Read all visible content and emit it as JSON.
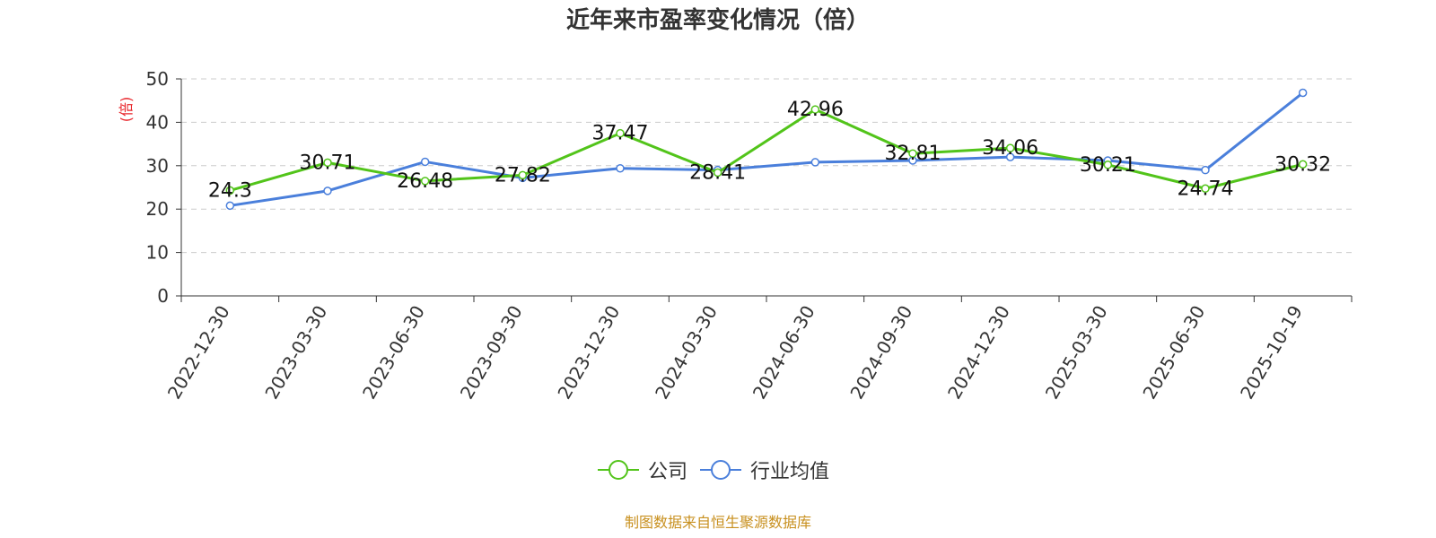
{
  "chart_data": {
    "type": "line",
    "title": "近年来市盈率变化情况（倍）",
    "ylabel": "(倍)",
    "xlabel": "",
    "ylim": [
      0,
      50
    ],
    "yticks": [
      0,
      10,
      20,
      30,
      40,
      50
    ],
    "grid": true,
    "legend_position": "bottom",
    "categories": [
      "2022-12-30",
      "2023-03-30",
      "2023-06-30",
      "2023-09-30",
      "2023-12-30",
      "2024-03-30",
      "2024-06-30",
      "2024-09-30",
      "2024-12-30",
      "2025-03-30",
      "2025-06-30",
      "2025-10-19"
    ],
    "series": [
      {
        "name": "公司",
        "color": "#52c41a",
        "values": [
          24.3,
          30.71,
          26.48,
          27.82,
          37.47,
          28.41,
          42.96,
          32.81,
          34.06,
          30.21,
          24.74,
          30.32
        ],
        "labels": [
          "24.3",
          "30.71",
          "26.48",
          "27.82",
          "37.47",
          "28.41",
          "42.96",
          "32.81",
          "34.06",
          "30.21",
          "24.74",
          "30.32"
        ]
      },
      {
        "name": "行业均值",
        "color": "#4a7fdb",
        "values": [
          20.8,
          24.2,
          30.9,
          27.2,
          29.4,
          29.0,
          30.8,
          31.2,
          32.0,
          31.2,
          29.0,
          46.8
        ]
      }
    ]
  },
  "colors": {
    "ylabel": "#e8262b",
    "source": "#c8901f",
    "grid": "#cccccc",
    "axis": "#333333"
  },
  "footer": {
    "source": "制图数据来自恒生聚源数据库"
  }
}
